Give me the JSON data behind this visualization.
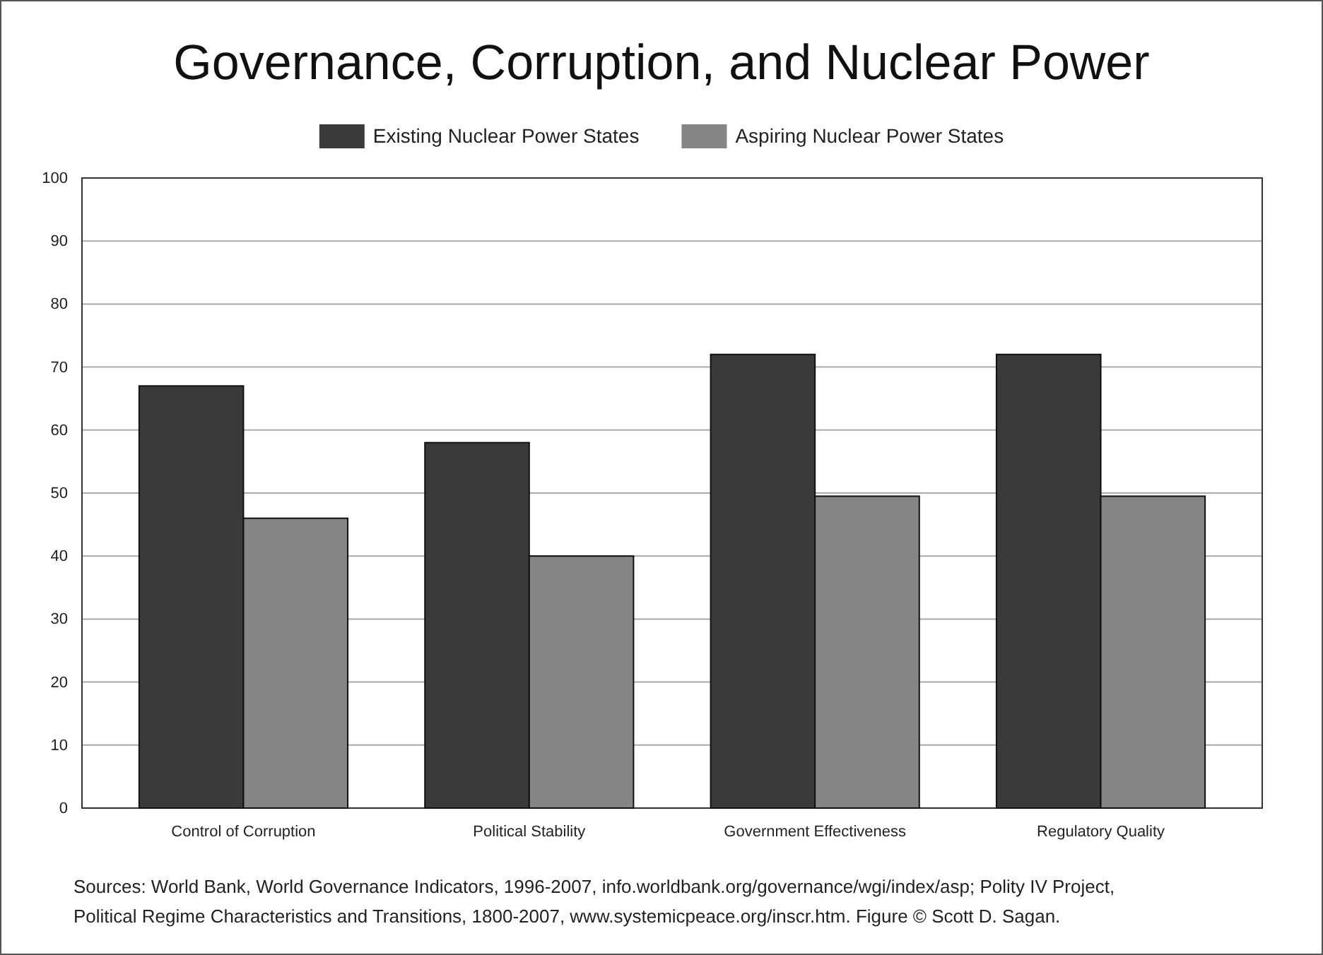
{
  "chart_data": {
    "type": "bar",
    "title": "Governance, Corruption, and Nuclear Power",
    "categories": [
      "Control of Corruption",
      "Political Stability",
      "Government Effectiveness",
      "Regulatory Quality"
    ],
    "series": [
      {
        "name": "Existing Nuclear Power States",
        "color": "#3a3a3a",
        "values": [
          67,
          58,
          72,
          72
        ]
      },
      {
        "name": "Aspiring Nuclear Power States",
        "color": "#858585",
        "values": [
          46,
          40,
          49.5,
          49.5
        ]
      }
    ],
    "ylim": [
      0,
      100
    ],
    "yticks": [
      0,
      10,
      20,
      30,
      40,
      50,
      60,
      70,
      80,
      90,
      100
    ],
    "grid": "y",
    "legend": "top",
    "annotations": [
      "Sources: World Bank, World Governance Indicators, 1996-2007, info.worldbank.org/governance/wgi/index/asp; Polity IV Project,",
      "Political Regime Characteristics and Transitions, 1800-2007, www.systemicpeace.org/inscr.htm. Figure © Scott D. Sagan."
    ]
  }
}
